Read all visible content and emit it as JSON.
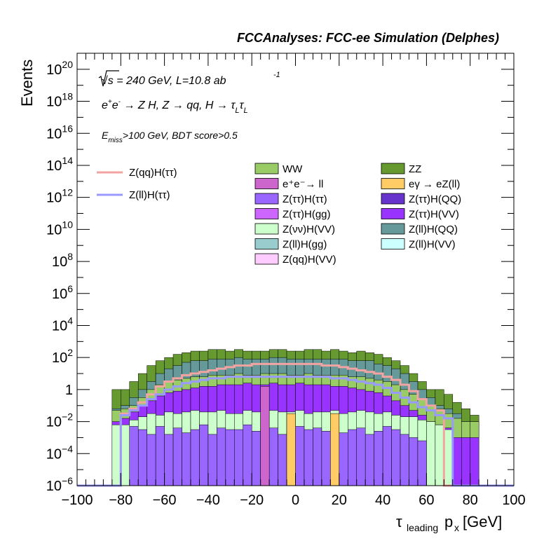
{
  "header": {
    "title": "FCCAnalyses: FCC-ee Simulation (Delphes)",
    "line1": "√s = 240 GeV, L=10.8 ab",
    "line1_sup": "-1",
    "line2": "e⁺e⁻ → Z H, Z → qq, H → τ_L τ_L",
    "line3": "E_miss>100 GeV, BDT score>0.5"
  },
  "chart_data": {
    "type": "area",
    "title": "FCCAnalyses: FCC-ee Simulation (Delphes)",
    "xlabel": "τ_leading p_x [GeV]",
    "ylabel": "Events",
    "xlim": [
      -100,
      100
    ],
    "ylim": [
      1e-06,
      1e+21
    ],
    "y_scale": "log",
    "bin_width": 4,
    "x_ticks": [
      "−100",
      "−80",
      "−60",
      "−40",
      "−20",
      "0",
      "20",
      "40",
      "60",
      "80",
      "100"
    ],
    "y_ticks": [
      {
        "base": "10",
        "exp": "−6"
      },
      {
        "base": "10",
        "exp": "−4"
      },
      {
        "base": "10",
        "exp": "−2"
      },
      {
        "base": "1",
        "exp": ""
      },
      {
        "base": "10",
        "exp": "2"
      },
      {
        "base": "10",
        "exp": "4"
      },
      {
        "base": "10",
        "exp": "6"
      },
      {
        "base": "10",
        "exp": "8"
      },
      {
        "base": "10",
        "exp": "10"
      },
      {
        "base": "10",
        "exp": "12"
      },
      {
        "base": "10",
        "exp": "14"
      },
      {
        "base": "10",
        "exp": "16"
      },
      {
        "base": "10",
        "exp": "18"
      },
      {
        "base": "10",
        "exp": "20"
      }
    ],
    "stack_totals_log10": {
      "x_range": [
        -84,
        84
      ],
      "description": "stack envelope levels (log10 events) read from figure",
      "ZZ_top": [
        0,
        0,
        0.5,
        1.0,
        1.5,
        1.8,
        2.0,
        2.2,
        2.3,
        2.4,
        2.4,
        2.5,
        2.5,
        2.4,
        2.5,
        2.4,
        2.4,
        2.4,
        2.5,
        2.5,
        2.4,
        2.4,
        2.5,
        2.5,
        2.4,
        2.5,
        2.4,
        2.3,
        2.4,
        2.3,
        2.2,
        2.0,
        1.8,
        1.5,
        1.0,
        0.5,
        0,
        0,
        -0.3,
        -0.8,
        -1.2,
        -1.6
      ],
      "ZllHQQ_top": [
        -1.2,
        -1.0,
        -0.5,
        0,
        0.5,
        1.0,
        1.3,
        1.5,
        1.7,
        1.8,
        1.8,
        1.9,
        1.9,
        1.9,
        2.0,
        1.9,
        1.9,
        1.9,
        2.0,
        2.0,
        1.9,
        1.9,
        1.9,
        1.9,
        1.9,
        1.9,
        1.9,
        1.8,
        1.8,
        1.8,
        1.6,
        1.5,
        1.3,
        1.0,
        0.5,
        0,
        -0.5,
        -1.0,
        -1.2,
        -1.5,
        -2,
        -2
      ],
      "WW_top": [
        -1.3,
        -1.2,
        -1.0,
        -0.5,
        0,
        0.3,
        0.5,
        0.6,
        0.7,
        0.8,
        0.8,
        0.9,
        0.9,
        0.9,
        1.0,
        0.9,
        0.9,
        1.0,
        1.0,
        1.0,
        0.9,
        0.9,
        1.0,
        0.9,
        0.9,
        0.9,
        0.9,
        0.8,
        0.8,
        0.7,
        0.6,
        0.5,
        0.3,
        0,
        -0.3,
        -0.6,
        -1.0,
        -1.2,
        -1.5,
        -1.8,
        -2,
        -2
      ],
      "ZttHVV_top": [
        -2.0,
        -1.8,
        -1.4,
        -1.0,
        -0.7,
        -0.4,
        -0.2,
        -0.1,
        0.0,
        0.1,
        0.2,
        0.2,
        0.3,
        0.3,
        0.3,
        0.4,
        0.3,
        0.3,
        0.4,
        0.3,
        0.3,
        0.4,
        0.3,
        0.3,
        0.3,
        0.2,
        0.2,
        0.1,
        0.0,
        -0.1,
        -0.2,
        -0.4,
        -0.7,
        -1.0,
        -1.3,
        -1.6,
        -2.0,
        -2.2,
        -2.4,
        -3,
        -3,
        -3
      ],
      "ZvvHVV_top": [
        -2.2,
        -2.2,
        -1.9,
        -1.7,
        -1.5,
        -1.6,
        -1.4,
        -1.5,
        -1.4,
        -1.3,
        -1.4,
        -1.4,
        -1.3,
        -1.5,
        -1.5,
        -1.3,
        -1.4,
        -1.5,
        -1.3,
        -1.4,
        -1.4,
        -1.3,
        -1.5,
        -1.4,
        -1.4,
        -1.3,
        -1.5,
        -1.4,
        -1.3,
        -1.4,
        -1.5,
        -1.4,
        -1.6,
        -1.7,
        -1.7,
        -1.9,
        -2.0,
        -2.2,
        -2.5,
        -6,
        -6,
        -6
      ],
      "ZttHtt_top": [
        -6,
        -6,
        -2.3,
        -2.5,
        -2.8,
        -2.3,
        -2.8,
        -2.4,
        -2.7,
        -2.5,
        -2.2,
        -2.8,
        -2.4,
        -2.5,
        -2.5,
        -2.2,
        -2.6,
        -2.5,
        -2.4,
        -2.8,
        -2.6,
        -2.3,
        -2.5,
        -2.4,
        -2.6,
        -2.3,
        -2.7,
        -2.5,
        -2.4,
        -2.8,
        -2.6,
        -2.3,
        -2.5,
        -2.8,
        -3.0,
        -3.2,
        -6,
        -6,
        -6,
        -6,
        -6,
        -6
      ]
    },
    "overlays": [
      {
        "name": "Z(qq)H(ττ)",
        "color": "#f4a3a3",
        "log10_values": [
          -6,
          -1.5,
          -1.2,
          -0.8,
          -0.3,
          0.2,
          0.5,
          0.7,
          0.9,
          1.0,
          1.1,
          1.2,
          1.3,
          1.4,
          1.5,
          1.5,
          1.6,
          1.6,
          1.6,
          1.6,
          1.6,
          1.6,
          1.6,
          1.6,
          1.5,
          1.5,
          1.4,
          1.3,
          1.2,
          1.1,
          1.0,
          0.8,
          0.6,
          0.3,
          -0.1,
          -0.6,
          -1.0,
          -1.3,
          -6,
          -6,
          -6,
          -6
        ]
      },
      {
        "name": "Z(ll)H(ττ)",
        "color": "#9999ff",
        "log10_values": [
          -6,
          -1.6,
          -1.3,
          -1.0,
          -0.6,
          -0.3,
          0.0,
          0.2,
          0.4,
          0.5,
          0.6,
          0.7,
          0.7,
          0.8,
          0.8,
          0.8,
          0.8,
          0.8,
          0.8,
          0.8,
          0.8,
          0.8,
          0.8,
          0.8,
          0.8,
          0.7,
          0.7,
          0.6,
          0.5,
          0.4,
          0.3,
          0.1,
          -0.2,
          -0.5,
          -0.8,
          -1.1,
          -1.3,
          -1.6,
          -1.8,
          -6,
          -6,
          -6
        ]
      }
    ],
    "series": [
      {
        "name": "WW",
        "color": "#99cc66"
      },
      {
        "name": "ZZ",
        "color": "#66992f"
      },
      {
        "name": "e⁺e⁻→ ll",
        "color": "#cc66cc"
      },
      {
        "name": "eγ → eZ(ll)",
        "color": "#ffcc66"
      },
      {
        "name": "Z(ττ)H(ττ)",
        "color": "#9966ff"
      },
      {
        "name": "Z(ττ)H(QQ)",
        "color": "#6633cc"
      },
      {
        "name": "Z(ττ)H(gg)",
        "color": "#cc66ff"
      },
      {
        "name": "Z(ττ)H(VV)",
        "color": "#9933ff"
      },
      {
        "name": "Z(νν)H(VV)",
        "color": "#ccffcc"
      },
      {
        "name": "Z(ll)H(QQ)",
        "color": "#669999"
      },
      {
        "name": "Z(ll)H(gg)",
        "color": "#99cccc"
      },
      {
        "name": "Z(ll)H(VV)",
        "color": "#ccffff"
      },
      {
        "name": "Z(qq)H(VV)",
        "color": "#ffccff"
      }
    ],
    "legend_lines": [
      {
        "name": "Z(qq)H(ττ)",
        "color": "#f4a3a3"
      },
      {
        "name": "Z(ll)H(ττ)",
        "color": "#9999ff"
      }
    ],
    "legend_placement": "upper-center",
    "grid": false
  }
}
